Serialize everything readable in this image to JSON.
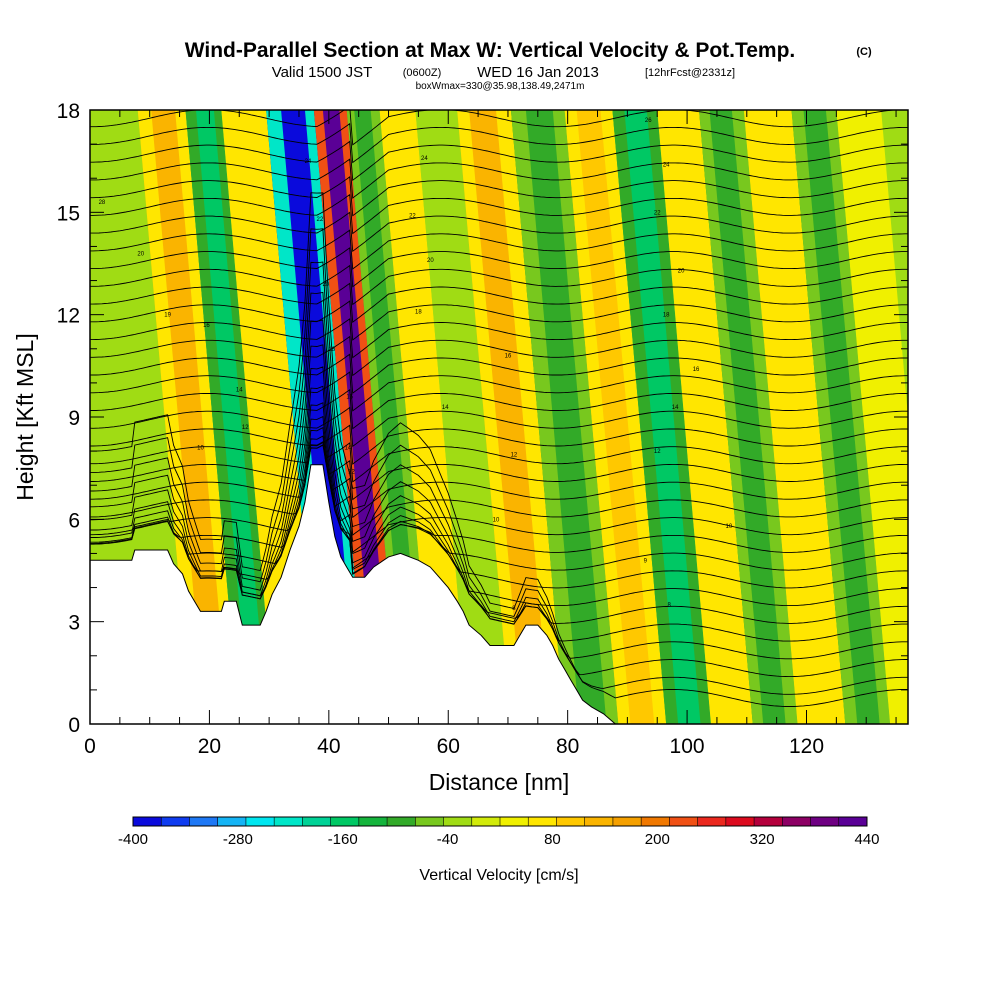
{
  "title": {
    "main": "Wind-Parallel Section at Max W: Vertical Velocity & Pot.Temp.",
    "copyright": "(C)",
    "valid_prefix": "Valid 1500 JST",
    "valid_utc": "(0600Z)",
    "valid_date": "WED 16 Jan 2013",
    "forecast": "[12hrFcst@2331z]",
    "box": "boxWmax=330@35.98,138.49,2471m"
  },
  "chart_data": {
    "type": "heatmap",
    "xlabel": "Distance [nm]",
    "ylabel": "Height [Kft MSL]",
    "xlim": [
      0,
      137
    ],
    "ylim": [
      0,
      18
    ],
    "x_ticks": [
      0,
      20,
      40,
      60,
      80,
      100,
      120
    ],
    "y_ticks": [
      0,
      3,
      6,
      9,
      12,
      15,
      18
    ],
    "x_minor_step": 5,
    "y_minor_step": 1,
    "colorbar": {
      "label": "Vertical Velocity [cm/s]",
      "tick_labels": [
        "-400",
        "-280",
        "-160",
        "-40",
        "80",
        "200",
        "320",
        "440"
      ],
      "tick_values": [
        -400,
        -280,
        -160,
        -40,
        80,
        200,
        320,
        440
      ],
      "levels": [
        -400,
        440
      ],
      "colors": [
        "#0a0adc",
        "#0f3cf0",
        "#1e78f5",
        "#14b4f5",
        "#00e6f0",
        "#00e6c8",
        "#00d296",
        "#00c864",
        "#14b43c",
        "#32aa28",
        "#78c81e",
        "#a0dc14",
        "#d2eb0a",
        "#f0f000",
        "#ffe600",
        "#ffc800",
        "#fab400",
        "#f5a000",
        "#f07800",
        "#f05014",
        "#eb281e",
        "#dc0a1e",
        "#b4003c",
        "#8c0064",
        "#6e0082",
        "#5a0096"
      ]
    },
    "vertical_velocity_bands": [
      {
        "x_center": 8,
        "value": -40
      },
      {
        "x_center": 17,
        "value": 140
      },
      {
        "x_center": 24,
        "value": -160
      },
      {
        "x_center": 29,
        "value": 80
      },
      {
        "x_center": 39,
        "value": -400
      },
      {
        "x_center": 45,
        "value": 440
      },
      {
        "x_center": 50,
        "value": -100
      },
      {
        "x_center": 56,
        "value": 80
      },
      {
        "x_center": 62,
        "value": -40
      },
      {
        "x_center": 70,
        "value": 140
      },
      {
        "x_center": 80,
        "value": -100
      },
      {
        "x_center": 88,
        "value": 110
      },
      {
        "x_center": 96,
        "value": -160
      },
      {
        "x_center": 103,
        "value": 80
      },
      {
        "x_center": 110,
        "value": -100
      },
      {
        "x_center": 118,
        "value": 80
      },
      {
        "x_center": 126,
        "value": -100
      },
      {
        "x_center": 133,
        "value": 30
      }
    ],
    "terrain_kft": [
      {
        "x": 0,
        "h": 4.8
      },
      {
        "x": 7,
        "h": 4.8
      },
      {
        "x": 7.5,
        "h": 5.1
      },
      {
        "x": 13,
        "h": 5.1
      },
      {
        "x": 14,
        "h": 4.7
      },
      {
        "x": 15.5,
        "h": 4.4
      },
      {
        "x": 16.5,
        "h": 3.9
      },
      {
        "x": 17.5,
        "h": 3.6
      },
      {
        "x": 18.5,
        "h": 3.3
      },
      {
        "x": 22,
        "h": 3.3
      },
      {
        "x": 22.5,
        "h": 3.6
      },
      {
        "x": 24.5,
        "h": 3.6
      },
      {
        "x": 25.5,
        "h": 2.9
      },
      {
        "x": 28.5,
        "h": 2.9
      },
      {
        "x": 29.5,
        "h": 3.3
      },
      {
        "x": 30.5,
        "h": 3.8
      },
      {
        "x": 32,
        "h": 4.3
      },
      {
        "x": 33.5,
        "h": 5.1
      },
      {
        "x": 35,
        "h": 5.8
      },
      {
        "x": 36,
        "h": 6.5
      },
      {
        "x": 37,
        "h": 7.6
      },
      {
        "x": 39,
        "h": 7.6
      },
      {
        "x": 40,
        "h": 6.5
      },
      {
        "x": 41,
        "h": 5.5
      },
      {
        "x": 42,
        "h": 4.9
      },
      {
        "x": 43,
        "h": 4.6
      },
      {
        "x": 44,
        "h": 4.3
      },
      {
        "x": 46,
        "h": 4.3
      },
      {
        "x": 47.5,
        "h": 4.6
      },
      {
        "x": 50,
        "h": 4.9
      },
      {
        "x": 52,
        "h": 5.0
      },
      {
        "x": 55,
        "h": 4.8
      },
      {
        "x": 57,
        "h": 4.6
      },
      {
        "x": 58.5,
        "h": 4.3
      },
      {
        "x": 60,
        "h": 4.0
      },
      {
        "x": 61.5,
        "h": 3.6
      },
      {
        "x": 62.5,
        "h": 3.3
      },
      {
        "x": 63.5,
        "h": 2.9
      },
      {
        "x": 65.5,
        "h": 2.6
      },
      {
        "x": 67,
        "h": 2.3
      },
      {
        "x": 71,
        "h": 2.3
      },
      {
        "x": 72,
        "h": 2.6
      },
      {
        "x": 73,
        "h": 2.9
      },
      {
        "x": 75,
        "h": 2.9
      },
      {
        "x": 76.5,
        "h": 2.6
      },
      {
        "x": 77.5,
        "h": 2.3
      },
      {
        "x": 78.5,
        "h": 1.9
      },
      {
        "x": 79.5,
        "h": 1.6
      },
      {
        "x": 80.5,
        "h": 1.3
      },
      {
        "x": 81.5,
        "h": 1.0
      },
      {
        "x": 82.5,
        "h": 0.7
      },
      {
        "x": 84,
        "h": 0.5
      },
      {
        "x": 86,
        "h": 0.3
      },
      {
        "x": 88,
        "h": 0.0
      },
      {
        "x": 137,
        "h": 0.0
      }
    ],
    "theta_contour_labels": [
      {
        "x": 2,
        "h": 15.3,
        "text": "28"
      },
      {
        "x": 8.5,
        "h": 13.8,
        "text": "20"
      },
      {
        "x": 13,
        "h": 12.0,
        "text": "19"
      },
      {
        "x": 19.5,
        "h": 11.7,
        "text": "16"
      },
      {
        "x": 25,
        "h": 9.8,
        "text": "14"
      },
      {
        "x": 26,
        "h": 8.7,
        "text": "12"
      },
      {
        "x": 18.5,
        "h": 8.1,
        "text": "10"
      },
      {
        "x": 36.5,
        "h": 16.5,
        "text": "24"
      },
      {
        "x": 38.5,
        "h": 14.8,
        "text": "22"
      },
      {
        "x": 39.5,
        "h": 12.9,
        "text": "20"
      },
      {
        "x": 40.5,
        "h": 11.0,
        "text": "18"
      },
      {
        "x": 43.5,
        "h": 9.6,
        "text": "16"
      },
      {
        "x": 43.2,
        "h": 8.1,
        "text": "14"
      },
      {
        "x": 43.8,
        "h": 7.4,
        "text": "12"
      },
      {
        "x": 56,
        "h": 16.6,
        "text": "24"
      },
      {
        "x": 54,
        "h": 14.9,
        "text": "22"
      },
      {
        "x": 57,
        "h": 13.6,
        "text": "20"
      },
      {
        "x": 55,
        "h": 12.1,
        "text": "18"
      },
      {
        "x": 70,
        "h": 10.8,
        "text": "16"
      },
      {
        "x": 59.5,
        "h": 9.3,
        "text": "14"
      },
      {
        "x": 71,
        "h": 7.9,
        "text": "12"
      },
      {
        "x": 68,
        "h": 6.0,
        "text": "10"
      },
      {
        "x": 71,
        "h": 3.4,
        "text": "8"
      },
      {
        "x": 93.5,
        "h": 17.7,
        "text": "26"
      },
      {
        "x": 96.5,
        "h": 16.4,
        "text": "24"
      },
      {
        "x": 95,
        "h": 15.0,
        "text": "22"
      },
      {
        "x": 99,
        "h": 13.3,
        "text": "20"
      },
      {
        "x": 96.5,
        "h": 12.0,
        "text": "18"
      },
      {
        "x": 101.5,
        "h": 10.4,
        "text": "16"
      },
      {
        "x": 98,
        "h": 9.3,
        "text": "14"
      },
      {
        "x": 95,
        "h": 8.0,
        "text": "12"
      },
      {
        "x": 107,
        "h": 5.8,
        "text": "10"
      },
      {
        "x": 93,
        "h": 4.8,
        "text": "9"
      },
      {
        "x": 97,
        "h": 3.5,
        "text": "8"
      }
    ]
  }
}
